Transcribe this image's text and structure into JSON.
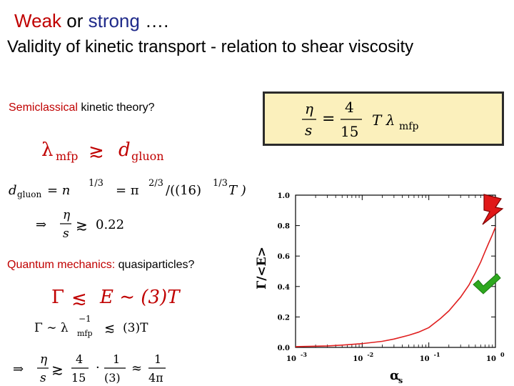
{
  "title": {
    "weak": "Weak",
    "or": "or",
    "strong": "strong",
    "ellipsis": "…."
  },
  "subtitle": "Validity of kinetic transport - relation to shear viscosity",
  "semiclassical": {
    "highlight": "Semiclassical",
    "rest": "kinetic theory?"
  },
  "quantum": {
    "highlight": "Quantum mechanics:",
    "rest": "quasiparticles?"
  },
  "formulas": {
    "box": {
      "lhs_num": "η",
      "lhs_den": "s",
      "rhs_num": "4",
      "rhs_den": "15",
      "rhs_tail": "T λ",
      "rhs_sub": "mfp"
    },
    "lambda_ge_d": {
      "lhs": "λ",
      "lhs_sub": "mfp",
      "rel": "≳",
      "rhs": "d",
      "rhs_sub": "gluon"
    },
    "d_gluon": {
      "lhs": "d",
      "lhs_sub": "gluon",
      "eq1": "= n",
      "exp1": "1/3",
      "eq2": "= π",
      "exp2": "2/3",
      "tail": "/((16)",
      "exp3": "1/3",
      "tail2": " T )"
    },
    "eta_s_1": {
      "arrow": "⇒",
      "num": "η",
      "den": "s",
      "rel": "≳",
      "val": "0.22"
    },
    "gamma_E": {
      "lhs": "Γ",
      "rel": "≲",
      "mid": "E ∼ (3)T"
    },
    "gamma_lambda": {
      "lhs": "Γ ∼ λ",
      "exp": "−1",
      "sub": "mfp",
      "rel": "≲",
      "rhs": "(3)T"
    },
    "eta_s_2": {
      "arrow": "⇒",
      "num": "η",
      "den": "s",
      "rel": "≳",
      "f1_num": "4",
      "f1_den": "15",
      "dot": "·",
      "f2_num": "1",
      "f2_den": "(3)",
      "approx": "≈",
      "f3_num": "1",
      "f3_den": "4π"
    }
  },
  "chart_data": {
    "type": "line",
    "xlabel": "α",
    "xlabel_sub": "s",
    "ylabel": "Γ/<E>",
    "xscale": "log",
    "xlim": [
      0.001,
      1
    ],
    "ylim": [
      0,
      1.0
    ],
    "xticks": [
      "10-3",
      "10-2",
      "10-1",
      "100"
    ],
    "xtick_base": "10",
    "xtick_exps": [
      "-3",
      "-2",
      "-1",
      "0"
    ],
    "yticks": [
      "0.0",
      "0.2",
      "0.4",
      "0.6",
      "0.8",
      "1.0"
    ],
    "x": [
      0.001,
      0.002,
      0.003,
      0.005,
      0.01,
      0.02,
      0.03,
      0.05,
      0.07,
      0.1,
      0.15,
      0.2,
      0.3,
      0.4,
      0.5,
      0.6,
      0.7,
      0.8,
      0.9,
      1.0
    ],
    "y": [
      0.005,
      0.008,
      0.01,
      0.015,
      0.025,
      0.04,
      0.055,
      0.08,
      0.1,
      0.13,
      0.19,
      0.24,
      0.33,
      0.41,
      0.49,
      0.56,
      0.63,
      0.69,
      0.74,
      0.79
    ],
    "line_color": "#e02020"
  },
  "colors": {
    "accent_red": "#c00000",
    "accent_navy": "#1f2a8a",
    "box_fill": "#fbf0bc",
    "check_green": "#2ea81e"
  },
  "icons": {
    "lightning": "lightning-icon",
    "check": "checkmark-icon"
  }
}
